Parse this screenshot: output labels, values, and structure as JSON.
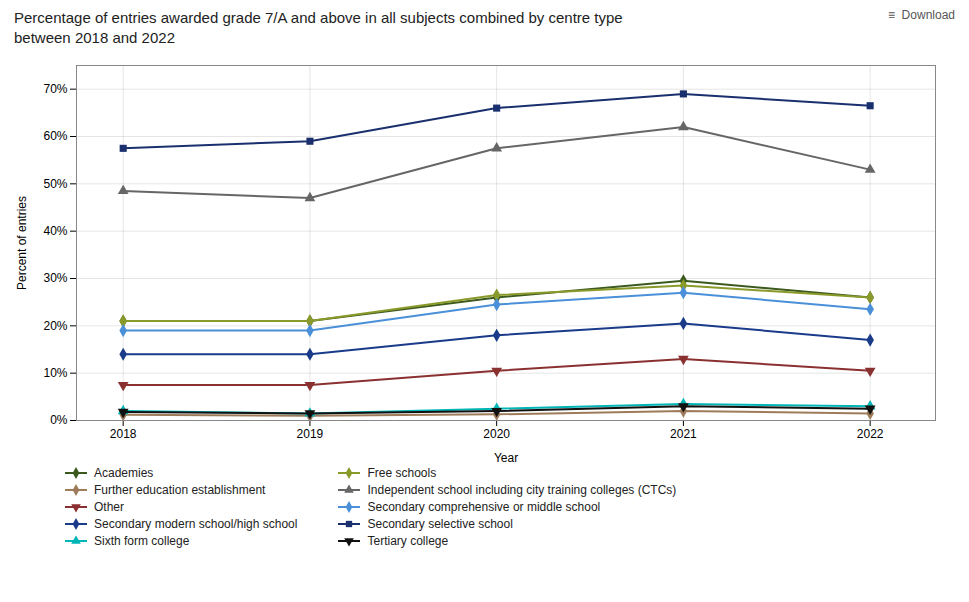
{
  "chart_data": {
    "type": "line",
    "title": "Percentage of entries awarded grade 7/A and above in all subjects combined by centre type\nbetween 2018 and 2022",
    "annotations": [
      "≡  Download"
    ],
    "xlabel": "Year",
    "ylabel": "Percent of entries",
    "x": [
      2018,
      2019,
      2020,
      2021,
      2022
    ],
    "xlim": [
      2017.75,
      2022.35
    ],
    "xticks": [
      2018,
      2019,
      2020,
      2021,
      2022
    ],
    "ylim": [
      0,
      75
    ],
    "yticks": [
      {
        "value": 0,
        "label": "0%"
      },
      {
        "value": 10,
        "label": "10%"
      },
      {
        "value": 20,
        "label": "20%"
      },
      {
        "value": 30,
        "label": "30%"
      },
      {
        "value": 40,
        "label": "40%"
      },
      {
        "value": 50,
        "label": "50%"
      },
      {
        "value": 60,
        "label": "60%"
      },
      {
        "value": 70,
        "label": "70%"
      }
    ],
    "grid": true,
    "legend": "bottom",
    "series": [
      {
        "name": "Academies",
        "color": "#3d5a1e",
        "marker": "diamond",
        "values": [
          21.0,
          21.0,
          26.0,
          29.5,
          26.0
        ]
      },
      {
        "name": "Free schools",
        "color": "#8a9a2a",
        "marker": "diamond",
        "values": [
          21.0,
          21.0,
          26.5,
          28.5,
          26.0
        ]
      },
      {
        "name": "Further education establishment",
        "color": "#9e7c5a",
        "marker": "diamond",
        "values": [
          1.2,
          1.0,
          1.3,
          2.0,
          1.5
        ]
      },
      {
        "name": "Independent school including city training colleges (CTCs)",
        "color": "#666666",
        "marker": "triangle-up",
        "values": [
          48.5,
          47.0,
          57.5,
          62.0,
          53.0
        ]
      },
      {
        "name": "Other",
        "color": "#8b3030",
        "marker": "triangle-down",
        "values": [
          7.5,
          7.5,
          10.5,
          13.0,
          10.5
        ]
      },
      {
        "name": "Secondary comprehensive or middle school",
        "color": "#4a90d9",
        "marker": "diamond",
        "values": [
          19.0,
          19.0,
          24.5,
          27.0,
          23.5
        ]
      },
      {
        "name": "Secondary modern school/high school",
        "color": "#1a3a8a",
        "marker": "diamond",
        "values": [
          14.0,
          14.0,
          18.0,
          20.5,
          17.0
        ]
      },
      {
        "name": "Secondary selective school",
        "color": "#1a2f6e",
        "marker": "square",
        "values": [
          57.5,
          59.0,
          66.0,
          69.0,
          66.5
        ]
      },
      {
        "name": "Sixth form college",
        "color": "#00b5b5",
        "marker": "triangle-up",
        "values": [
          2.0,
          1.5,
          2.5,
          3.5,
          3.0
        ]
      },
      {
        "name": "Tertiary college",
        "color": "#111111",
        "marker": "triangle-down",
        "values": [
          1.8,
          1.5,
          2.0,
          3.0,
          2.5
        ]
      }
    ]
  }
}
